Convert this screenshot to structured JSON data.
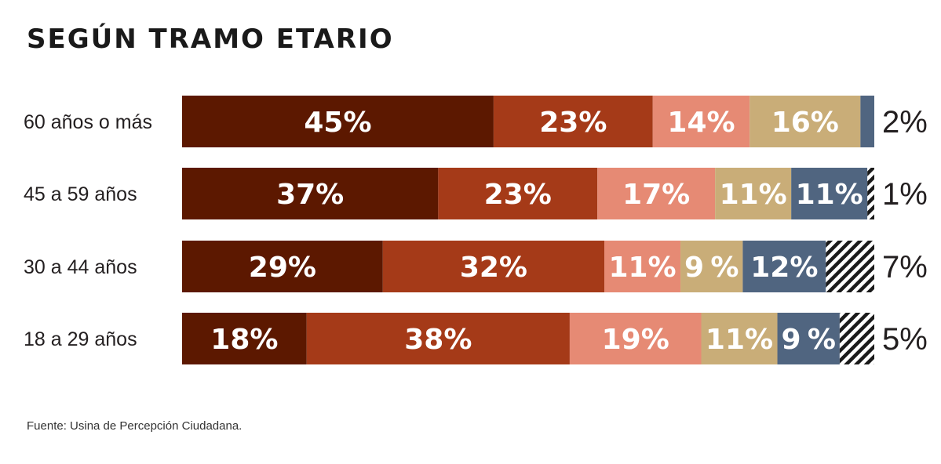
{
  "title": "SEGÚN TRAMO ETARIO",
  "source": "Fuente: Usina de Percepción Ciudadana.",
  "colors": [
    "#5c1800",
    "#a53a18",
    "#e68a74",
    "#c9ad78",
    "#506580",
    "hatch"
  ],
  "chart_data": {
    "type": "bar",
    "orientation": "horizontal",
    "stacked": true,
    "title": "SEGÚN TRAMO ETARIO",
    "xlabel": "",
    "ylabel": "",
    "grid": false,
    "legend": "none",
    "categories": [
      "60 años o más",
      "45 a 59 años",
      "30 a 44 años",
      "18 a 29 años"
    ],
    "series": [
      {
        "values": [
          45,
          37,
          29,
          18
        ],
        "labels": [
          "45%",
          "37%",
          "29%",
          "18%"
        ],
        "color": "#5c1800"
      },
      {
        "values": [
          23,
          23,
          32,
          38
        ],
        "labels": [
          "23%",
          "23%",
          "32%",
          "38%"
        ],
        "color": "#a53a18"
      },
      {
        "values": [
          14,
          17,
          11,
          19
        ],
        "labels": [
          "14%",
          "17%",
          "11%",
          "19%"
        ],
        "color": "#e68a74"
      },
      {
        "values": [
          16,
          11,
          9,
          11
        ],
        "labels": [
          "16%",
          "11%",
          "9%",
          "11%"
        ],
        "color": "#c9ad78"
      },
      {
        "values": [
          2,
          11,
          12,
          9
        ],
        "labels": [
          "2%",
          "11%",
          "12%",
          "9%"
        ],
        "color": "#506580"
      },
      {
        "values": [
          0,
          1,
          7,
          5
        ],
        "labels": [
          "",
          "1%",
          "7%",
          "5%"
        ],
        "color": "hatch"
      }
    ],
    "outside_labels": [
      "2%",
      "1%",
      "7%",
      "5%"
    ]
  }
}
